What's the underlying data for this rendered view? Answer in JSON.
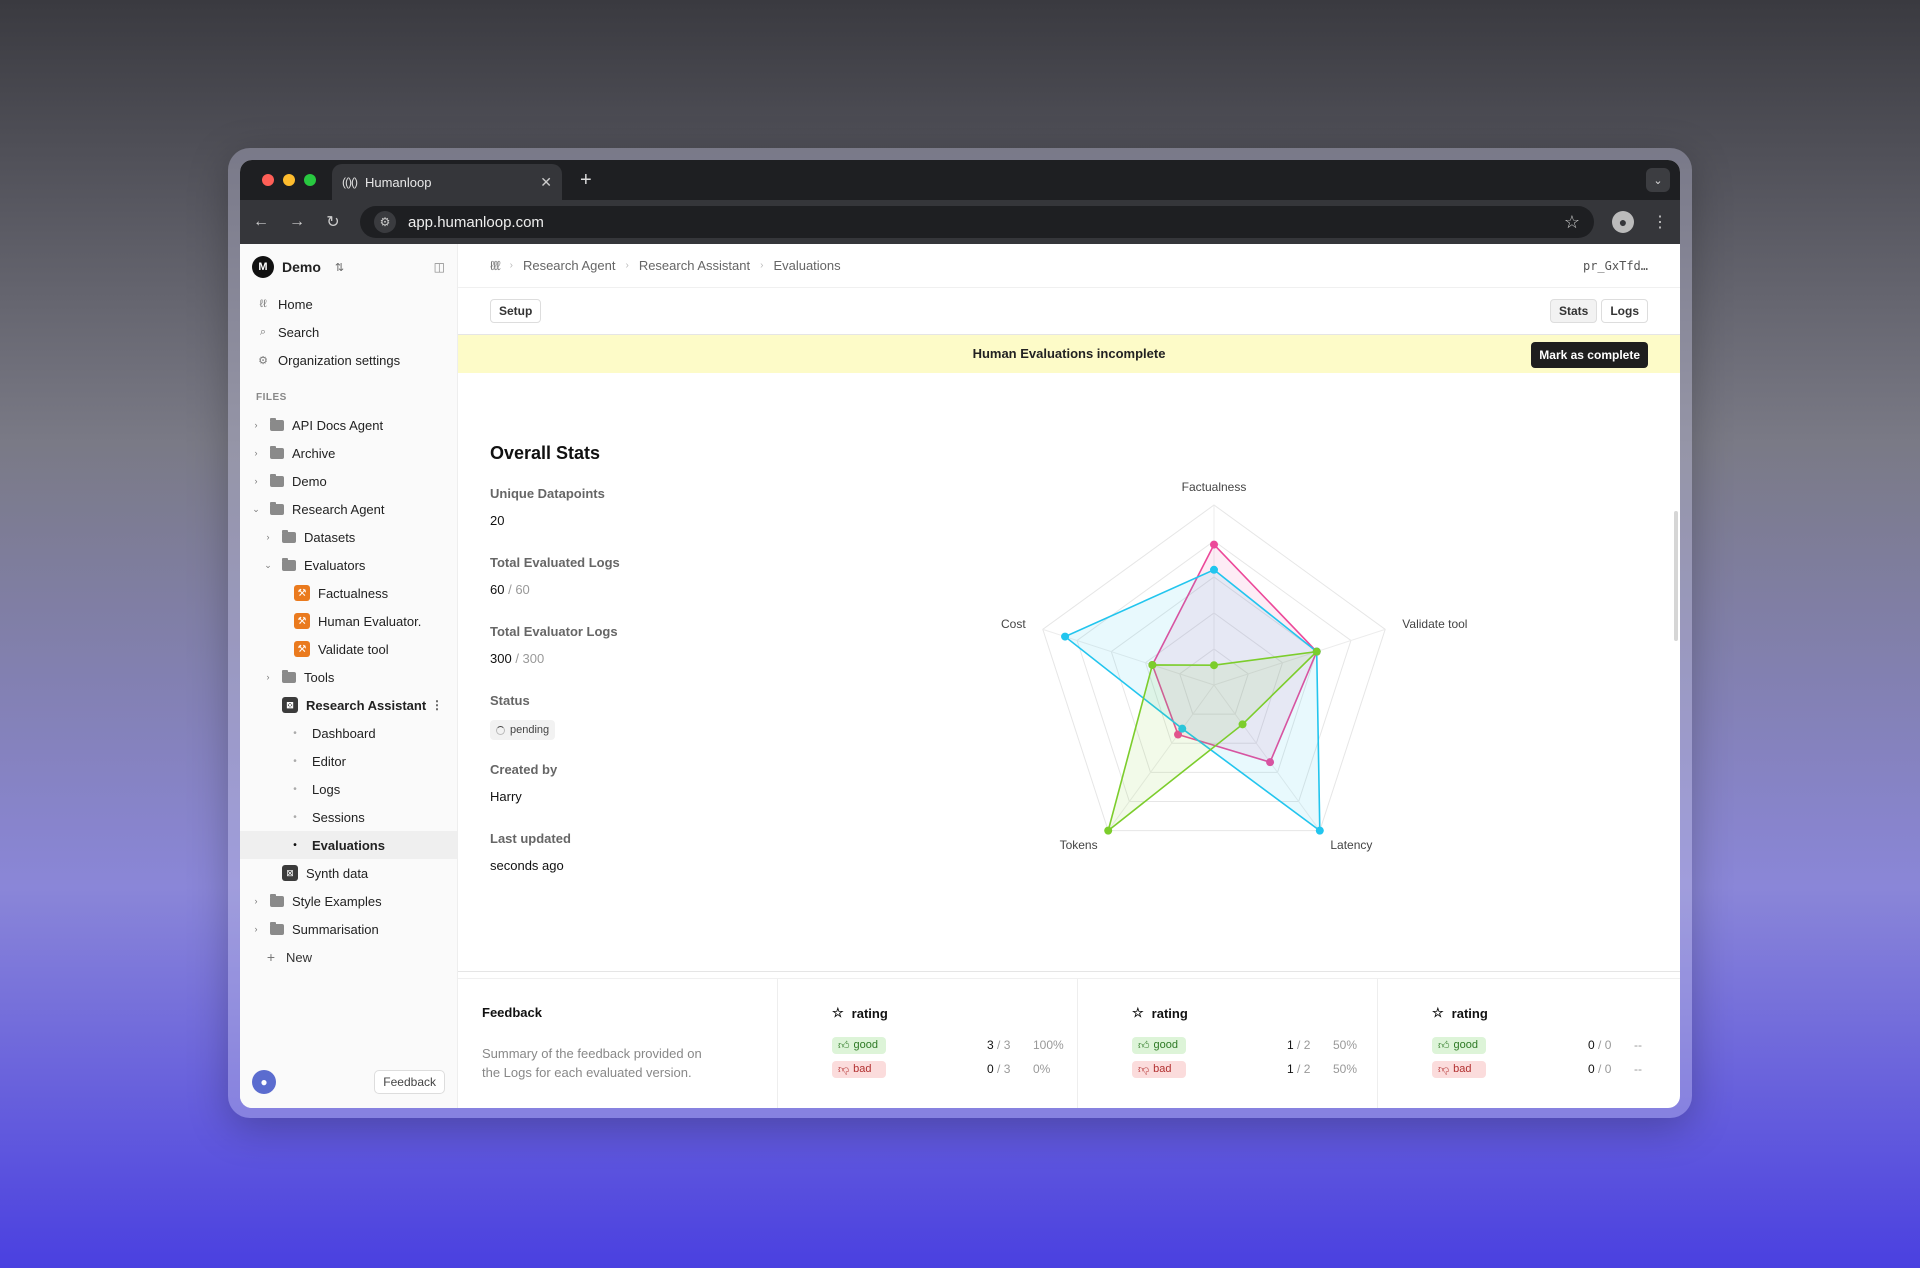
{
  "browser": {
    "tab_title": "Humanloop",
    "tab_logo": "(()()",
    "url": "app.humanloop.com",
    "traffic_colors": [
      "#ff5f57",
      "#febc2e",
      "#28c840"
    ]
  },
  "workspace": {
    "name": "Demo"
  },
  "nav": [
    {
      "label": "Home",
      "icon": "humanloop-icon"
    },
    {
      "label": "Search",
      "icon": "search-icon"
    },
    {
      "label": "Organization settings",
      "icon": "gear-icon"
    }
  ],
  "files_label": "FILES",
  "tree": {
    "api_docs": "API Docs Agent",
    "archive": "Archive",
    "demo": "Demo",
    "research_agent": "Research Agent",
    "datasets": "Datasets",
    "evaluators": "Evaluators",
    "factualness": "Factualness",
    "human_evaluator": "Human Evaluator.",
    "validate_tool": "Validate tool",
    "tools": "Tools",
    "research_assistant": "Research Assistant",
    "dashboard": "Dashboard",
    "editor": "Editor",
    "logs": "Logs",
    "sessions": "Sessions",
    "evaluations": "Evaluations",
    "synth_data": "Synth data",
    "style_examples": "Style Examples",
    "summarisation": "Summarisation",
    "new": "New"
  },
  "sidebar_feedback": "Feedback",
  "breadcrumb": [
    "Research Agent",
    "Research Assistant",
    "Evaluations"
  ],
  "pr_id": "pr_GxTfd…",
  "toolbar": {
    "setup": "Setup",
    "stats": "Stats",
    "logs": "Logs"
  },
  "banner": {
    "text": "Human Evaluations incomplete",
    "button": "Mark as complete"
  },
  "stats": {
    "title": "Overall Stats",
    "unique_label": "Unique Datapoints",
    "unique_value": "20",
    "evaluated_label": "Total Evaluated Logs",
    "evaluated_value": "60",
    "evaluated_total": "/ 60",
    "evaluator_label": "Total Evaluator Logs",
    "evaluator_value": "300",
    "evaluator_total": "/ 300",
    "status_label": "Status",
    "status_value": "pending",
    "created_label": "Created by",
    "created_value": "Harry",
    "updated_label": "Last updated",
    "updated_value": "seconds ago"
  },
  "chart_data": {
    "type": "radar",
    "axes": [
      "Factualness",
      "Validate tool",
      "Latency",
      "Tokens",
      "Cost"
    ],
    "range": [
      0,
      1
    ],
    "series": [
      {
        "color": "#ec4899",
        "values": [
          0.78,
          0.6,
          0.53,
          0.34,
          0.36
        ]
      },
      {
        "color": "#22c5ee",
        "values": [
          0.64,
          0.6,
          1.0,
          0.3,
          0.87
        ]
      },
      {
        "color": "#7ccd2c",
        "values": [
          0.11,
          0.6,
          0.27,
          1.0,
          0.36
        ]
      }
    ]
  },
  "feedback": {
    "title": "Feedback",
    "description": "Summary of the feedback provided on the Logs for each evaluated version.",
    "columns": [
      {
        "label": "rating",
        "good": "3",
        "good_total": "/ 3",
        "good_pct": "100%",
        "bad": "0",
        "bad_total": "/ 3",
        "bad_pct": "0%"
      },
      {
        "label": "rating",
        "good": "1",
        "good_total": "/ 2",
        "good_pct": "50%",
        "bad": "1",
        "bad_total": "/ 2",
        "bad_pct": "50%"
      },
      {
        "label": "rating",
        "good": "0",
        "good_total": "/ 0",
        "good_pct": "--",
        "bad": "0",
        "bad_total": "/ 0",
        "bad_pct": "--"
      }
    ],
    "good_label": "good",
    "bad_label": "bad"
  }
}
